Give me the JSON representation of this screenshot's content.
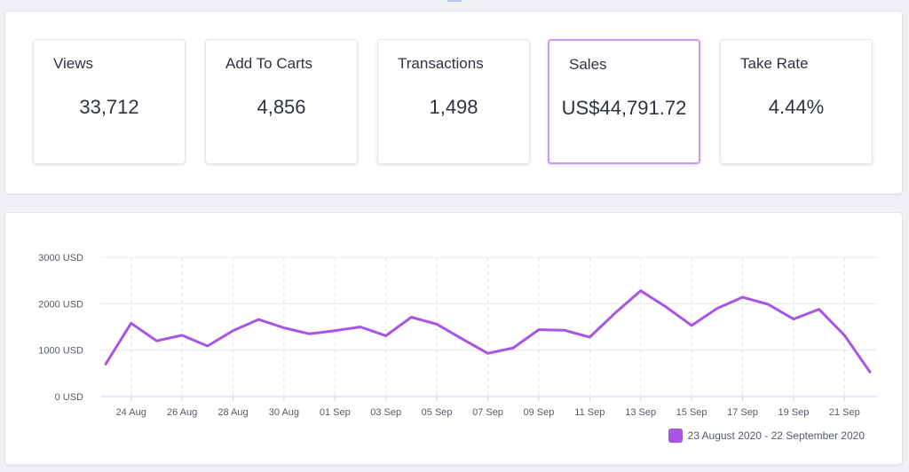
{
  "stats": [
    {
      "label": "Views",
      "value": "33,712",
      "selected": false
    },
    {
      "label": "Add To Carts",
      "value": "4,856",
      "selected": false
    },
    {
      "label": "Transactions",
      "value": "1,498",
      "selected": false
    },
    {
      "label": "Sales",
      "value": "US$44,791.72",
      "selected": true
    },
    {
      "label": "Take Rate",
      "value": "4.44%",
      "selected": false
    }
  ],
  "colors": {
    "series": "#a955e3",
    "accent_border": "#c79cf0",
    "grid": "#e6e8ec"
  },
  "chart_data": {
    "type": "line",
    "x": [
      "23 Aug",
      "24 Aug",
      "25 Aug",
      "26 Aug",
      "27 Aug",
      "28 Aug",
      "29 Aug",
      "30 Aug",
      "31 Aug",
      "01 Sep",
      "02 Sep",
      "03 Sep",
      "04 Sep",
      "05 Sep",
      "06 Sep",
      "07 Sep",
      "08 Sep",
      "09 Sep",
      "10 Sep",
      "11 Sep",
      "12 Sep",
      "13 Sep",
      "14 Sep",
      "15 Sep",
      "16 Sep",
      "17 Sep",
      "18 Sep",
      "19 Sep",
      "20 Sep",
      "21 Sep",
      "22 Sep"
    ],
    "x_tick_labels": [
      "24 Aug",
      "26 Aug",
      "28 Aug",
      "30 Aug",
      "01 Sep",
      "03 Sep",
      "05 Sep",
      "07 Sep",
      "09 Sep",
      "11 Sep",
      "13 Sep",
      "15 Sep",
      "17 Sep",
      "19 Sep",
      "21 Sep"
    ],
    "y_tick_labels": [
      "3000 USD",
      "2000 USD",
      "1000 USD",
      "0 USD"
    ],
    "y_ticks": [
      3000,
      2000,
      1000,
      0
    ],
    "ylim": [
      0,
      3000
    ],
    "series": [
      {
        "name": "23 August 2020 - 22 September 2020",
        "values": [
          700,
          1580,
          1200,
          1320,
          1090,
          1420,
          1660,
          1480,
          1350,
          1420,
          1500,
          1310,
          1710,
          1560,
          1240,
          930,
          1050,
          1440,
          1430,
          1280,
          1800,
          2280,
          1930,
          1530,
          1900,
          2140,
          1990,
          1670,
          1880,
          1320,
          530
        ]
      }
    ],
    "grid": true,
    "legend_position": "bottom-right"
  }
}
